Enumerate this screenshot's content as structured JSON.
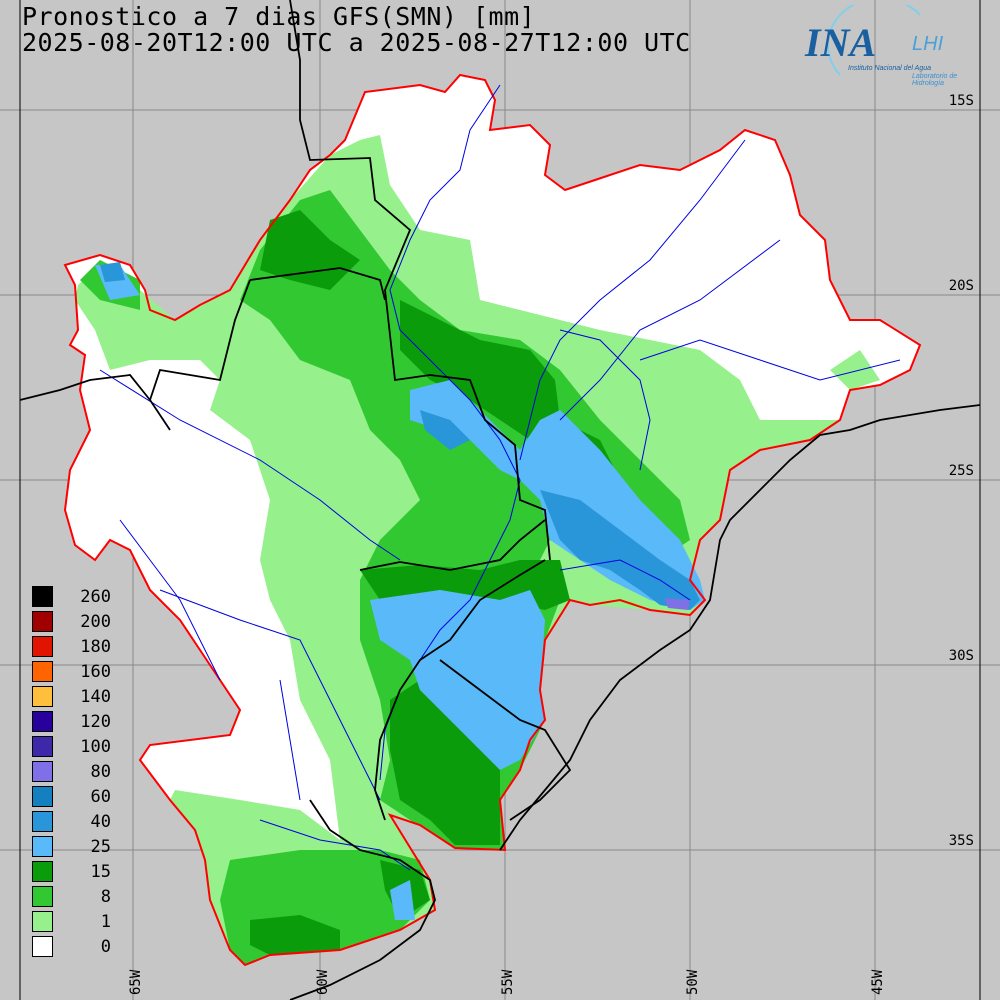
{
  "title": {
    "line1": "Pronostico a 7 dias GFS(SMN) [mm]",
    "line2": "2025-08-20T12:00 UTC a 2025-08-27T12:00 UTC"
  },
  "logo": {
    "name": "INA",
    "sub": "LHI",
    "line1": "Instituto Nacional del Agua",
    "line2": "Laboratorio de Hidrología"
  },
  "latitudes": [
    "15S",
    "20S",
    "25S",
    "30S",
    "35S"
  ],
  "longitudes": [
    "65W",
    "60W",
    "55W",
    "50W",
    "45W"
  ],
  "legend": [
    {
      "value": "260",
      "color": "#000000"
    },
    {
      "value": "200",
      "color": "#a00000"
    },
    {
      "value": "180",
      "color": "#e01400"
    },
    {
      "value": "160",
      "color": "#ff6400"
    },
    {
      "value": "140",
      "color": "#ffbe3c"
    },
    {
      "value": "120",
      "color": "#28009c"
    },
    {
      "value": "100",
      "color": "#3c28a8"
    },
    {
      "value": "80",
      "color": "#8070e8"
    },
    {
      "value": "60",
      "color": "#1480c0"
    },
    {
      "value": "40",
      "color": "#2896d8"
    },
    {
      "value": "25",
      "color": "#5ab9f8"
    },
    {
      "value": "15",
      "color": "#0a9c0a"
    },
    {
      "value": "8",
      "color": "#32c832"
    },
    {
      "value": "1",
      "color": "#96f08c"
    },
    {
      "value": "0",
      "color": "#ffffff"
    }
  ]
}
